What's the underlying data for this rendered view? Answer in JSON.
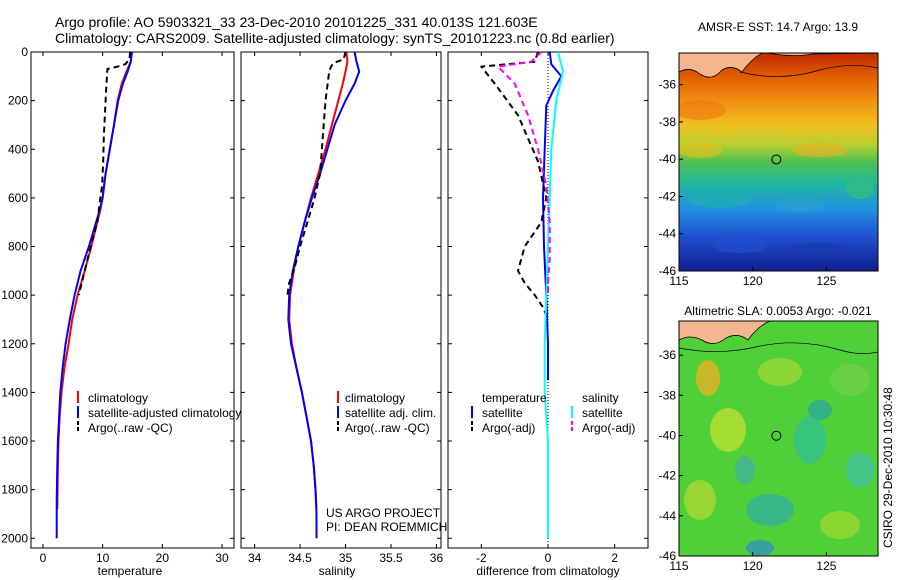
{
  "header": {
    "line1": "Argo profile: AO 5903321_33 23-Dec-2010 20101225_331 40.013S 121.603E",
    "line2": "Climatology: CARS2009. Satellite-adjusted climatology: synTS_20101223.nc (0.8d earlier)"
  },
  "side_credit": "CSIRO 29-Dec-2010 10:30:48",
  "project_credit": [
    "US ARGO PROJECT",
    "PI: DEAN ROEMMICH"
  ],
  "colors": {
    "climatology": "#ff0000",
    "satellite": "#0000ff",
    "argo": "#000000",
    "satellite_salinity": "#00ffff",
    "argo_salinity_diff": "#ff00ff",
    "land": "#f4b68f"
  },
  "chart_data": [
    {
      "type": "line",
      "panel": "temperature",
      "xlabel": "temperature",
      "ylabel": "",
      "xlim": [
        -2,
        32
      ],
      "ylim": [
        2040,
        0
      ],
      "y_reversed": true,
      "xticks": [
        0,
        10,
        20,
        30
      ],
      "yticks": [
        0,
        200,
        400,
        600,
        800,
        1000,
        1200,
        1400,
        1600,
        1800,
        2000
      ],
      "legend": {
        "placement": "lower-right",
        "entries": [
          "climatology",
          "satellite-adjusted climatology",
          "Argo(..raw -QC)"
        ]
      },
      "series": [
        {
          "name": "climatology",
          "color": "#ff0000",
          "dash": "solid",
          "x": [
            14.9,
            14.7,
            14.0,
            13.2,
            12.5,
            11.9,
            11.2,
            10.5,
            10.0,
            9.6,
            9.1,
            8.1,
            7.0,
            5.8,
            4.9,
            4.3,
            3.6,
            3.1,
            2.8,
            2.6,
            2.5,
            2.4
          ],
          "y": [
            0,
            40,
            80,
            130,
            200,
            300,
            400,
            500,
            600,
            650,
            700,
            800,
            900,
            1000,
            1100,
            1200,
            1300,
            1400,
            1500,
            1600,
            1700,
            1880
          ]
        },
        {
          "name": "satellite-adjusted climatology",
          "color": "#0000ff",
          "dash": "solid",
          "x": [
            14.9,
            14.7,
            14.2,
            13.4,
            12.6,
            11.9,
            11.2,
            10.5,
            10.0,
            9.5,
            8.9,
            7.7,
            6.3,
            5.3,
            4.5,
            3.8,
            3.3,
            2.9,
            2.7,
            2.5,
            2.4,
            2.3,
            2.3
          ],
          "y": [
            0,
            40,
            80,
            130,
            200,
            300,
            400,
            500,
            600,
            650,
            700,
            800,
            900,
            1000,
            1100,
            1200,
            1300,
            1400,
            1500,
            1600,
            1700,
            1850,
            2000
          ]
        },
        {
          "name": "Argo(..raw -QC)",
          "color": "#000000",
          "dash": "dashed",
          "x": [
            14.6,
            14.5,
            13.8,
            12.5,
            10.8,
            10.6,
            10.4,
            10.2,
            10.1,
            9.9,
            9.6,
            9.1,
            8.0,
            7.0,
            6.0
          ],
          "y": [
            0,
            30,
            50,
            60,
            70,
            150,
            250,
            350,
            450,
            550,
            600,
            700,
            800,
            900,
            1000
          ]
        }
      ]
    },
    {
      "type": "line",
      "panel": "salinity",
      "xlabel": "salinity",
      "ylabel": "",
      "xlim": [
        33.85,
        36.05
      ],
      "ylim": [
        2040,
        0
      ],
      "y_reversed": true,
      "xticks": [
        34,
        34.5,
        35,
        35.5,
        36
      ],
      "xtick_labels": [
        "34",
        "34.5",
        "35",
        "35.5",
        "36"
      ],
      "legend": {
        "placement": "lower-right",
        "entries": [
          "climatology",
          "satellite adj. clim.",
          "Argo(..raw -QC)"
        ]
      },
      "series": [
        {
          "name": "climatology",
          "color": "#ff0000",
          "dash": "solid",
          "x": [
            35.01,
            35.02,
            35.0,
            34.97,
            34.92,
            34.85,
            34.78,
            34.7,
            34.62,
            34.55,
            34.48,
            34.43,
            34.39,
            34.38,
            34.41,
            34.46,
            34.52,
            34.57,
            34.62,
            34.65,
            34.67,
            34.68
          ],
          "y": [
            0,
            40,
            80,
            130,
            200,
            300,
            400,
            500,
            600,
            700,
            800,
            900,
            1000,
            1100,
            1200,
            1300,
            1400,
            1500,
            1600,
            1700,
            1800,
            1880
          ]
        },
        {
          "name": "satellite adj. clim.",
          "color": "#0000ff",
          "dash": "solid",
          "x": [
            35.1,
            35.12,
            35.15,
            35.1,
            35.0,
            34.88,
            34.8,
            34.72,
            34.63,
            34.55,
            34.48,
            34.42,
            34.38,
            34.37,
            34.4,
            34.46,
            34.52,
            34.57,
            34.62,
            34.65,
            34.67,
            34.68,
            34.68
          ],
          "y": [
            0,
            40,
            80,
            130,
            200,
            300,
            400,
            500,
            600,
            700,
            800,
            900,
            1000,
            1100,
            1200,
            1300,
            1400,
            1500,
            1600,
            1700,
            1800,
            1900,
            2000
          ]
        },
        {
          "name": "Argo(..raw -QC)",
          "color": "#000000",
          "dash": "dashed",
          "x": [
            35.0,
            34.98,
            34.87,
            34.84,
            34.82,
            34.78,
            34.75,
            34.72,
            34.66,
            34.58,
            34.5,
            34.43,
            34.38,
            34.36
          ],
          "y": [
            0,
            30,
            45,
            60,
            80,
            200,
            350,
            500,
            600,
            700,
            800,
            900,
            950,
            1000
          ]
        }
      ]
    },
    {
      "type": "line",
      "panel": "difference",
      "xlabel": "difference from climatology",
      "ylabel": "",
      "xlim": [
        -3,
        3
      ],
      "ylim": [
        2040,
        0
      ],
      "y_reversed": true,
      "xticks": [
        -2,
        0,
        2
      ],
      "legend": {
        "placement": "lower",
        "entries": [
          "temperature",
          "satellite",
          "Argo(-adj)",
          "salinity",
          "satellite",
          "Argo(-adj)"
        ]
      },
      "series": [
        {
          "name": "temperature satellite",
          "color": "#0000ff",
          "dash": "solid",
          "x": [
            0.05,
            0.1,
            0.4,
            0.15,
            -0.05,
            -0.1,
            -0.15,
            -0.12,
            -0.05,
            0.0,
            0.0
          ],
          "y": [
            0,
            50,
            100,
            160,
            220,
            400,
            600,
            800,
            1000,
            1200,
            1350
          ]
        },
        {
          "name": "temperature Argo(-adj)",
          "color": "#000000",
          "dash": "dashed",
          "x": [
            -0.3,
            -0.4,
            -2.0,
            -1.6,
            -0.9,
            -0.3,
            -0.05,
            -0.2,
            -0.7,
            -0.9,
            -0.7,
            -0.4,
            -0.15,
            0.0
          ],
          "y": [
            0,
            40,
            60,
            130,
            260,
            450,
            600,
            700,
            800,
            900,
            950,
            1000,
            1050,
            1100
          ]
        },
        {
          "name": "salinity satellite",
          "color": "#00ffff",
          "dash": "solid",
          "x": [
            0.3,
            0.45,
            0.25,
            0.1,
            0.05,
            0.0,
            -0.05,
            -0.1,
            -0.1,
            0.0,
            0.0
          ],
          "y": [
            0,
            80,
            200,
            400,
            600,
            800,
            1000,
            1200,
            1400,
            1600,
            2000
          ]
        },
        {
          "name": "salinity Argo(-adj)",
          "color": "#ff00ff",
          "dash": "dashed",
          "x": [
            -0.2,
            -0.5,
            -1.5,
            -1.0,
            -0.6,
            -0.3,
            -0.05,
            0.05,
            0.05,
            0.0,
            0.0
          ],
          "y": [
            0,
            40,
            60,
            130,
            260,
            400,
            550,
            700,
            850,
            950,
            1000
          ]
        }
      ]
    },
    {
      "type": "heatmap",
      "panel": "sst_map",
      "title": "AMSR-E SST: 14.7 Argo: 13.9",
      "xlim": [
        115,
        128.5
      ],
      "ylim": [
        -46,
        -34.3
      ],
      "xticks": [
        115,
        120,
        125
      ],
      "yticks": [
        -36,
        -38,
        -40,
        -42,
        -44,
        -46
      ],
      "profile_location": {
        "lon": 121.603,
        "lat": -40.013
      }
    },
    {
      "type": "heatmap",
      "panel": "sla_map",
      "title": "Altimetric SLA: 0.0053 Argo: -0.021",
      "xlim": [
        115,
        128.5
      ],
      "ylim": [
        -46,
        -34.3
      ],
      "xticks": [
        115,
        120,
        125
      ],
      "yticks": [
        -36,
        -38,
        -40,
        -42,
        -44,
        -46
      ],
      "profile_location": {
        "lon": 121.603,
        "lat": -40.013
      }
    }
  ]
}
